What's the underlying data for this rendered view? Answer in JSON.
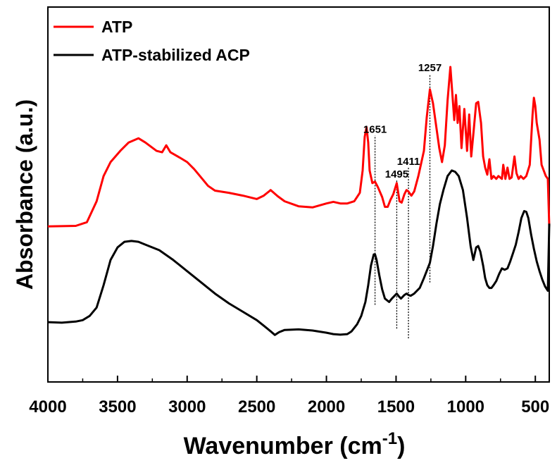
{
  "chart_data": {
    "type": "line",
    "xlabel": "Wavenumber (cm",
    "xlabel_superscript": "-1",
    "xlabel_close": ")",
    "ylabel": "Absorbance (a.u.)",
    "xlim": [
      4000,
      400
    ],
    "x_reversed": true,
    "ylim": [
      0,
      10
    ],
    "y_ticks_shown": false,
    "x_ticks": [
      4000,
      3500,
      3000,
      2500,
      2000,
      1500,
      1000,
      500
    ],
    "x_tick_labels": [
      "4000",
      "3500",
      "3000",
      "2500",
      "2000",
      "1500",
      "1000",
      "500"
    ],
    "grid": false,
    "legend_position": "top-left",
    "series": [
      {
        "name": "ATP",
        "color": "#ff0000",
        "points": [
          [
            4000,
            4.3
          ],
          [
            3800,
            4.32
          ],
          [
            3720,
            4.45
          ],
          [
            3650,
            5.2
          ],
          [
            3600,
            6.1
          ],
          [
            3550,
            6.6
          ],
          [
            3480,
            7.0
          ],
          [
            3420,
            7.3
          ],
          [
            3350,
            7.45
          ],
          [
            3300,
            7.3
          ],
          [
            3220,
            7.0
          ],
          [
            3180,
            6.95
          ],
          [
            3150,
            7.2
          ],
          [
            3120,
            6.95
          ],
          [
            3050,
            6.75
          ],
          [
            3000,
            6.6
          ],
          [
            2950,
            6.35
          ],
          [
            2900,
            6.05
          ],
          [
            2850,
            5.75
          ],
          [
            2800,
            5.58
          ],
          [
            2700,
            5.5
          ],
          [
            2600,
            5.4
          ],
          [
            2500,
            5.28
          ],
          [
            2450,
            5.4
          ],
          [
            2400,
            5.6
          ],
          [
            2350,
            5.38
          ],
          [
            2300,
            5.2
          ],
          [
            2200,
            5.02
          ],
          [
            2100,
            4.98
          ],
          [
            2000,
            5.12
          ],
          [
            1950,
            5.18
          ],
          [
            1900,
            5.12
          ],
          [
            1850,
            5.12
          ],
          [
            1800,
            5.2
          ],
          [
            1760,
            5.5
          ],
          [
            1740,
            6.3
          ],
          [
            1725,
            7.5
          ],
          [
            1712,
            7.85
          ],
          [
            1700,
            7.3
          ],
          [
            1690,
            6.3
          ],
          [
            1670,
            5.85
          ],
          [
            1651,
            5.9
          ],
          [
            1630,
            5.7
          ],
          [
            1600,
            5.35
          ],
          [
            1580,
            5.0
          ],
          [
            1560,
            5.0
          ],
          [
            1540,
            5.25
          ],
          [
            1520,
            5.45
          ],
          [
            1495,
            5.85
          ],
          [
            1475,
            5.2
          ],
          [
            1460,
            5.15
          ],
          [
            1440,
            5.45
          ],
          [
            1425,
            5.6
          ],
          [
            1411,
            5.55
          ],
          [
            1390,
            5.4
          ],
          [
            1370,
            5.55
          ],
          [
            1340,
            6.1
          ],
          [
            1300,
            7.0
          ],
          [
            1280,
            8.2
          ],
          [
            1257,
            9.2
          ],
          [
            1235,
            8.7
          ],
          [
            1215,
            8.0
          ],
          [
            1190,
            7.1
          ],
          [
            1170,
            6.6
          ],
          [
            1150,
            7.2
          ],
          [
            1130,
            8.8
          ],
          [
            1110,
            10.0
          ],
          [
            1095,
            9.0
          ],
          [
            1082,
            8.1
          ],
          [
            1070,
            9.0
          ],
          [
            1058,
            8.0
          ],
          [
            1045,
            8.6
          ],
          [
            1030,
            7.1
          ],
          [
            1010,
            8.5
          ],
          [
            990,
            7.0
          ],
          [
            975,
            8.3
          ],
          [
            960,
            6.8
          ],
          [
            945,
            7.6
          ],
          [
            925,
            8.7
          ],
          [
            910,
            8.75
          ],
          [
            890,
            8.0
          ],
          [
            875,
            6.8
          ],
          [
            860,
            6.4
          ],
          [
            845,
            6.15
          ],
          [
            830,
            6.7
          ],
          [
            815,
            6.0
          ],
          [
            800,
            6.1
          ],
          [
            780,
            6.0
          ],
          [
            765,
            6.1
          ],
          [
            740,
            6.0
          ],
          [
            730,
            6.5
          ],
          [
            715,
            6.0
          ],
          [
            700,
            6.4
          ],
          [
            685,
            6.0
          ],
          [
            670,
            6.05
          ],
          [
            650,
            6.8
          ],
          [
            635,
            6.2
          ],
          [
            620,
            6.0
          ],
          [
            605,
            6.1
          ],
          [
            585,
            6.0
          ],
          [
            565,
            6.1
          ],
          [
            540,
            6.5
          ],
          [
            520,
            8.3
          ],
          [
            510,
            8.9
          ],
          [
            500,
            8.6
          ],
          [
            490,
            8.0
          ],
          [
            470,
            7.4
          ],
          [
            455,
            6.5
          ],
          [
            440,
            6.3
          ],
          [
            425,
            6.1
          ],
          [
            410,
            6.0
          ],
          [
            400,
            4.3
          ]
        ]
      },
      {
        "name": "ATP-stabilized ACP",
        "color": "#000000",
        "points": [
          [
            4000,
            0.88
          ],
          [
            3900,
            0.86
          ],
          [
            3800,
            0.9
          ],
          [
            3750,
            0.95
          ],
          [
            3700,
            1.1
          ],
          [
            3650,
            1.4
          ],
          [
            3600,
            2.2
          ],
          [
            3550,
            3.1
          ],
          [
            3500,
            3.55
          ],
          [
            3450,
            3.75
          ],
          [
            3400,
            3.78
          ],
          [
            3350,
            3.75
          ],
          [
            3300,
            3.65
          ],
          [
            3200,
            3.45
          ],
          [
            3100,
            3.1
          ],
          [
            3000,
            2.7
          ],
          [
            2900,
            2.3
          ],
          [
            2800,
            1.9
          ],
          [
            2700,
            1.55
          ],
          [
            2600,
            1.25
          ],
          [
            2500,
            0.95
          ],
          [
            2450,
            0.75
          ],
          [
            2400,
            0.55
          ],
          [
            2370,
            0.42
          ],
          [
            2340,
            0.52
          ],
          [
            2300,
            0.6
          ],
          [
            2200,
            0.62
          ],
          [
            2100,
            0.58
          ],
          [
            2000,
            0.5
          ],
          [
            1950,
            0.45
          ],
          [
            1900,
            0.43
          ],
          [
            1850,
            0.45
          ],
          [
            1820,
            0.55
          ],
          [
            1780,
            0.8
          ],
          [
            1750,
            1.1
          ],
          [
            1720,
            1.6
          ],
          [
            1700,
            2.2
          ],
          [
            1680,
            2.9
          ],
          [
            1660,
            3.3
          ],
          [
            1651,
            3.3
          ],
          [
            1640,
            3.1
          ],
          [
            1620,
            2.55
          ],
          [
            1600,
            2.05
          ],
          [
            1580,
            1.72
          ],
          [
            1550,
            1.6
          ],
          [
            1530,
            1.72
          ],
          [
            1495,
            1.9
          ],
          [
            1480,
            1.8
          ],
          [
            1465,
            1.72
          ],
          [
            1440,
            1.85
          ],
          [
            1425,
            1.9
          ],
          [
            1411,
            1.85
          ],
          [
            1395,
            1.82
          ],
          [
            1370,
            1.9
          ],
          [
            1330,
            2.1
          ],
          [
            1300,
            2.45
          ],
          [
            1257,
            3.0
          ],
          [
            1235,
            3.6
          ],
          [
            1210,
            4.4
          ],
          [
            1185,
            5.1
          ],
          [
            1160,
            5.6
          ],
          [
            1130,
            6.1
          ],
          [
            1100,
            6.3
          ],
          [
            1075,
            6.25
          ],
          [
            1050,
            6.1
          ],
          [
            1020,
            5.6
          ],
          [
            990,
            4.6
          ],
          [
            965,
            3.6
          ],
          [
            945,
            3.1
          ],
          [
            925,
            3.55
          ],
          [
            910,
            3.6
          ],
          [
            895,
            3.4
          ],
          [
            875,
            2.9
          ],
          [
            860,
            2.45
          ],
          [
            845,
            2.2
          ],
          [
            830,
            2.1
          ],
          [
            815,
            2.1
          ],
          [
            800,
            2.2
          ],
          [
            780,
            2.35
          ],
          [
            760,
            2.6
          ],
          [
            740,
            2.8
          ],
          [
            720,
            2.75
          ],
          [
            700,
            2.8
          ],
          [
            680,
            3.05
          ],
          [
            660,
            3.35
          ],
          [
            640,
            3.65
          ],
          [
            620,
            4.1
          ],
          [
            600,
            4.6
          ],
          [
            580,
            4.85
          ],
          [
            565,
            4.82
          ],
          [
            550,
            4.6
          ],
          [
            530,
            4.0
          ],
          [
            510,
            3.5
          ],
          [
            490,
            3.05
          ],
          [
            470,
            2.7
          ],
          [
            450,
            2.4
          ],
          [
            430,
            2.15
          ],
          [
            410,
            2.0
          ],
          [
            400,
            4.4
          ]
        ]
      }
    ],
    "annotations": [
      {
        "label": "1651",
        "x": 1651,
        "y_bottom": 1.5,
        "y_top": 7.55
      },
      {
        "label": "1495",
        "x": 1495,
        "y_bottom": 0.65,
        "y_top": 5.95
      },
      {
        "label": "1411",
        "x": 1411,
        "y_bottom": 0.3,
        "y_top": 6.4
      },
      {
        "label": "1257",
        "x": 1257,
        "y_bottom": 2.3,
        "y_top": 9.75
      }
    ]
  }
}
